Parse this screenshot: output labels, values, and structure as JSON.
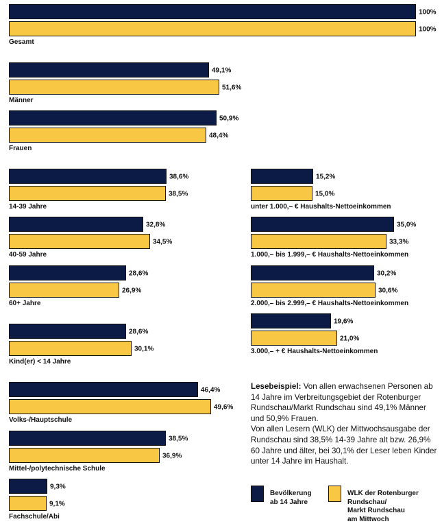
{
  "colors": {
    "population": "#0c1b46",
    "readers": "#f8c743",
    "border": "#111111"
  },
  "legend": {
    "population": "Bevölkerung\nab 14 Jahre",
    "readers": "WLK der Rotenburger\nRundschau/\nMarkt Rundschau\nam Mittwoch"
  },
  "note": {
    "lead": "Lesebeispiel:",
    "text1": " Von allen erwachsenen Personen ab 14 Jahre im Verbreitungsgebiet der Rotenburger Rundschau/Markt Rundschau sind 49,1% Männer und 50,9% Frauen.",
    "text2": "Von allen Lesern (WLK) der Mittwochsausgabe der Rundschau sind 38,5% 14-39 Jahre alt bzw. 26,9% 60 Jahre und älter, bei 30,1% der Leser leben Kinder unter 14 Jahre im Haushalt."
  },
  "chart_data": {
    "type": "bar",
    "orientation": "horizontal",
    "unit": "%",
    "xlim": [
      0,
      100
    ],
    "series": [
      {
        "name": "Bevölkerung ab 14 Jahre",
        "color": "#0c1b46"
      },
      {
        "name": "WLK der Rotenburger Rundschau/Markt Rundschau am Mittwoch",
        "color": "#f8c743"
      }
    ],
    "groups": [
      {
        "category": "Gesamt",
        "values": [
          100,
          100
        ],
        "labels": [
          "100%",
          "100%"
        ]
      },
      {
        "category": "Männer",
        "values": [
          49.1,
          51.6
        ],
        "labels": [
          "49,1%",
          "51,6%"
        ]
      },
      {
        "category": "Frauen",
        "values": [
          50.9,
          48.4
        ],
        "labels": [
          "50,9%",
          "48,4%"
        ]
      },
      {
        "category": "14-39 Jahre",
        "values": [
          38.6,
          38.5
        ],
        "labels": [
          "38,6%",
          "38,5%"
        ]
      },
      {
        "category": "40-59 Jahre",
        "values": [
          32.8,
          34.5
        ],
        "labels": [
          "32,8%",
          "34,5%"
        ]
      },
      {
        "category": "60+ Jahre",
        "values": [
          28.6,
          26.9
        ],
        "labels": [
          "28,6%",
          "26,9%"
        ]
      },
      {
        "category": "Kind(er) < 14 Jahre",
        "values": [
          28.6,
          30.1
        ],
        "labels": [
          "28,6%",
          "30,1%"
        ]
      },
      {
        "category": "Volks-/Hauptschule",
        "values": [
          46.4,
          49.6
        ],
        "labels": [
          "46,4%",
          "49,6%"
        ]
      },
      {
        "category": "Mittel-/polytechnische Schule",
        "values": [
          38.5,
          36.9
        ],
        "labels": [
          "38,5%",
          "36,9%"
        ]
      },
      {
        "category": "Fachschule/Abi",
        "values": [
          9.3,
          9.1
        ],
        "labels": [
          "9,3%",
          "9,1%"
        ]
      },
      {
        "category": "unter 1.000,– € Haushalts-Nettoeinkommen",
        "values": [
          15.2,
          15.0
        ],
        "labels": [
          "15,2%",
          "15,0%"
        ]
      },
      {
        "category": "1.000,– bis 1.999,– € Haushalts-Nettoeinkommen",
        "values": [
          35.0,
          33.3
        ],
        "labels": [
          "35,0%",
          "33,3%"
        ]
      },
      {
        "category": "2.000,– bis 2.999,– € Haushalts-Nettoeinkommen",
        "values": [
          30.2,
          30.6
        ],
        "labels": [
          "30,2%",
          "30,6%"
        ]
      },
      {
        "category": "3.000,– + € Haushalts-Nettoeinkommen",
        "values": [
          19.6,
          21.0
        ],
        "labels": [
          "19,6%",
          "21,0%"
        ]
      }
    ]
  }
}
